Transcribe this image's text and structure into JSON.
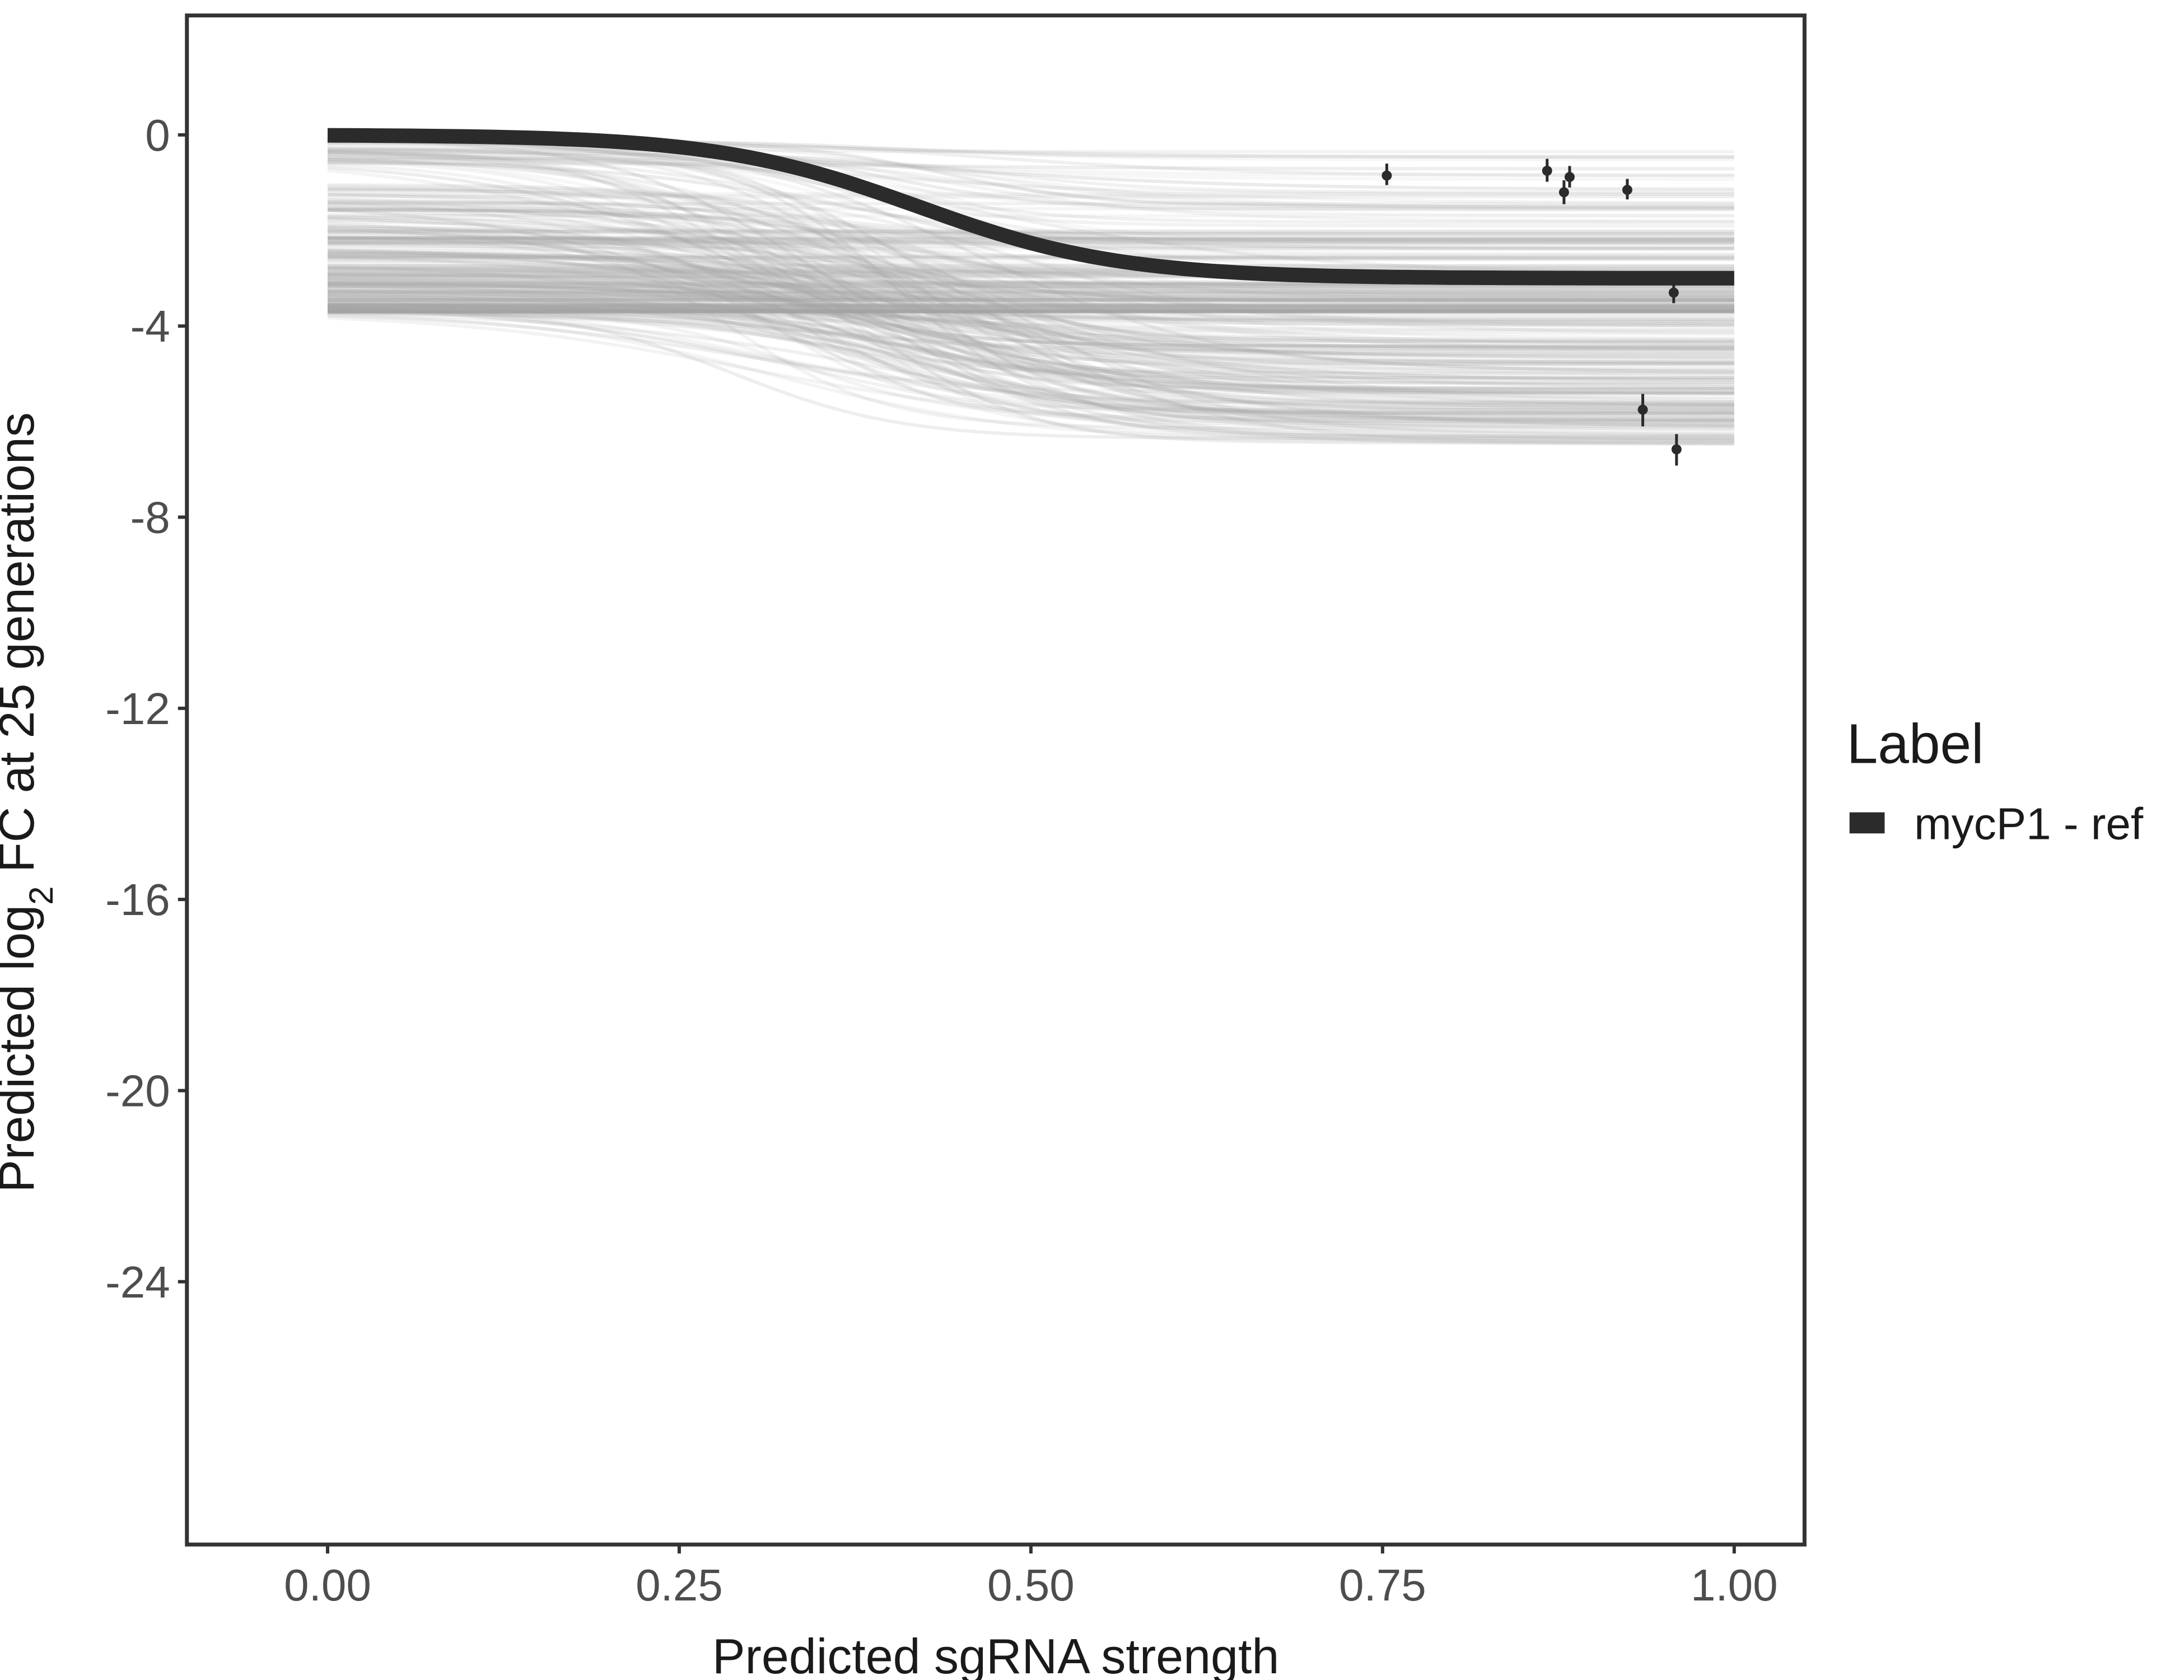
{
  "chart_data": {
    "type": "line",
    "title": "",
    "xlabel": "Predicted sgRNA strength",
    "ylabel_parts": {
      "pre": "Predicted  log",
      "sub": "2",
      "post": " FC at 25 generations"
    },
    "xlim": [
      -0.1,
      1.05
    ],
    "ylim": [
      -29.5,
      2.5
    ],
    "x_ticks": [
      0.0,
      0.25,
      0.5,
      0.75,
      1.0
    ],
    "x_tick_labels": [
      "0.00",
      "0.25",
      "0.50",
      "0.75",
      "1.00"
    ],
    "y_ticks": [
      0,
      -4,
      -8,
      -12,
      -16,
      -20,
      -24
    ],
    "y_tick_labels": [
      "0",
      "-4",
      "-8",
      "-12",
      "-16",
      "-20",
      "-24"
    ],
    "grid": false,
    "legend": {
      "title": "Label",
      "placement": "right",
      "entries": [
        {
          "name": "mycP1 - ref",
          "color": "#2b2b2b"
        }
      ]
    },
    "main_curve": {
      "name": "mycP1 - ref",
      "color": "#2b2b2b",
      "start": 0.0,
      "end": -3.0,
      "midpoint": 0.42,
      "steepness": 14
    },
    "posterior_curves": {
      "color": "#a6a6a6",
      "count": 300,
      "start_range": [
        -3.7,
        0.0
      ],
      "end_range": [
        -6.5,
        -0.2
      ],
      "midpoint_range": [
        0.28,
        0.5
      ],
      "steepness_range": [
        8,
        20
      ]
    },
    "points": [
      {
        "x": 0.753,
        "y": -0.85,
        "ymin": -1.05,
        "ymax": -0.6
      },
      {
        "x": 0.867,
        "y": -0.75,
        "ymin": -0.98,
        "ymax": -0.5
      },
      {
        "x": 0.879,
        "y": -1.2,
        "ymin": -1.45,
        "ymax": -0.95
      },
      {
        "x": 0.883,
        "y": -0.88,
        "ymin": -1.1,
        "ymax": -0.65
      },
      {
        "x": 0.924,
        "y": -1.15,
        "ymin": -1.35,
        "ymax": -0.92
      },
      {
        "x": 0.957,
        "y": -3.3,
        "ymin": -3.52,
        "ymax": -3.05
      },
      {
        "x": 0.935,
        "y": -5.75,
        "ymin": -6.1,
        "ymax": -5.42
      },
      {
        "x": 0.959,
        "y": -6.58,
        "ymin": -6.92,
        "ymax": -6.26
      }
    ]
  }
}
